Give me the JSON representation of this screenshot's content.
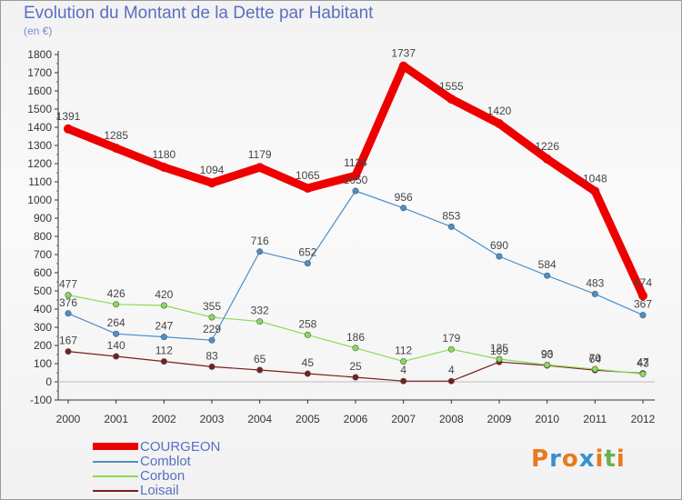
{
  "chart_data": {
    "type": "line",
    "title": "Evolution du Montant de la Dette par Habitant",
    "subtitle": "(en €)",
    "x": [
      "2000",
      "2001",
      "2002",
      "2003",
      "2004",
      "2005",
      "2006",
      "2007",
      "2008",
      "2009",
      "2010",
      "2011",
      "2012"
    ],
    "ylim": [
      -100,
      1800
    ],
    "yticks": [
      -100,
      0,
      100,
      200,
      300,
      400,
      500,
      600,
      700,
      800,
      900,
      1000,
      1100,
      1200,
      1300,
      1400,
      1500,
      1600,
      1700,
      1800
    ],
    "grid": false,
    "legend_position": "bottom-left",
    "series": [
      {
        "name": "COURGEON",
        "color": "#ee0000",
        "values": [
          1391,
          1285,
          1180,
          1094,
          1179,
          1065,
          1134,
          1737,
          1555,
          1420,
          1226,
          1048,
          474
        ]
      },
      {
        "name": "Comblot",
        "color": "#4a8fcb",
        "values": [
          376,
          264,
          247,
          229,
          716,
          652,
          1050,
          956,
          853,
          690,
          584,
          483,
          367
        ]
      },
      {
        "name": "Corbon",
        "color": "#88dd55",
        "values": [
          477,
          426,
          420,
          355,
          332,
          258,
          186,
          112,
          179,
          125,
          93,
          70,
          43
        ]
      },
      {
        "name": "Loisail",
        "color": "#7a1e1e",
        "values": [
          167,
          140,
          112,
          83,
          65,
          45,
          25,
          4,
          4,
          109,
          90,
          64,
          47
        ]
      }
    ]
  },
  "logo": {
    "text": "Proxiti",
    "letters": [
      "P",
      "r",
      "o",
      "x",
      "i",
      "t",
      "i"
    ],
    "colors": [
      "#e87a1e",
      "#3a8fd0",
      "#e87a1e",
      "#3a8fd0",
      "#e87a1e",
      "#6ab04c",
      "#e87a1e"
    ]
  }
}
